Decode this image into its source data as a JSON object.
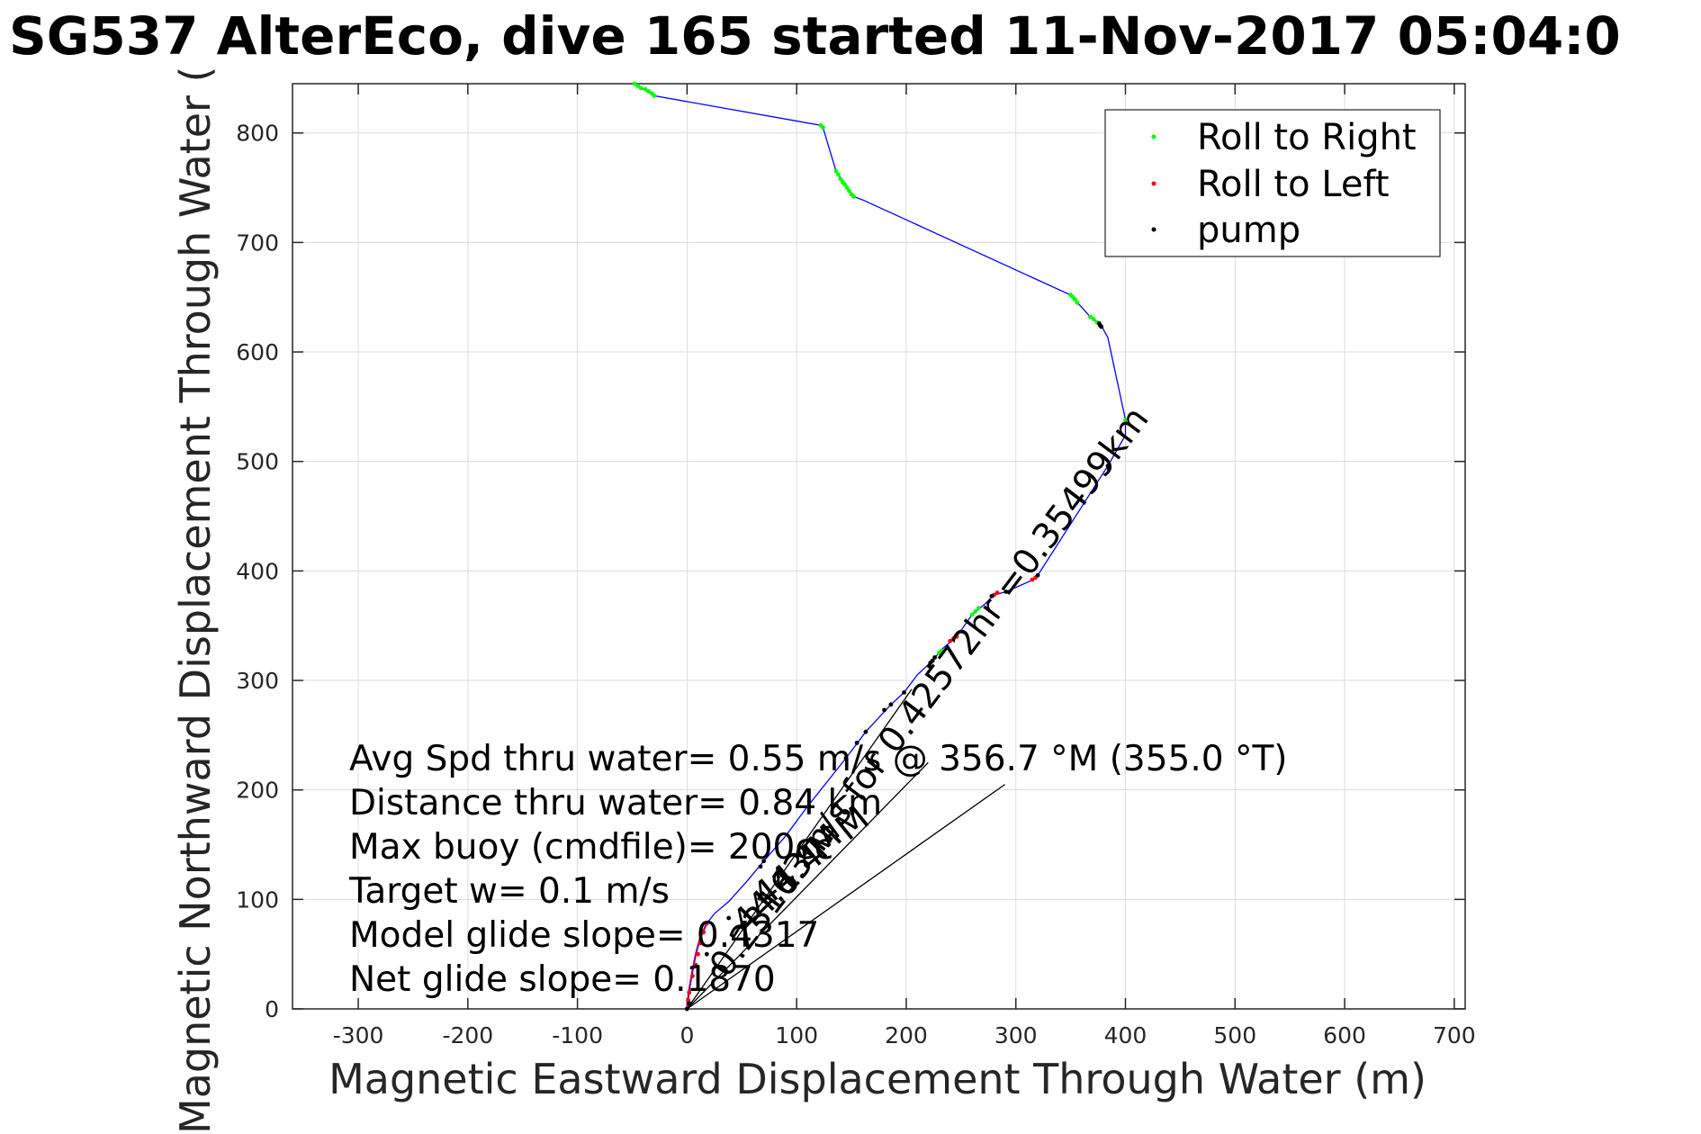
{
  "chart_data": {
    "type": "scatter",
    "title": "SG537 AlterEco, dive 165 started 11-Nov-2017 05:04:0",
    "xlabel": "Magnetic Eastward Displacement Through Water (m)",
    "ylabel": "Magnetic Northward Displacement Through Water (",
    "xlim": [
      -360,
      710
    ],
    "ylim": [
      0,
      845
    ],
    "xticks": [
      -300,
      -200,
      -100,
      0,
      100,
      200,
      300,
      400,
      500,
      600,
      700
    ],
    "yticks": [
      0,
      100,
      200,
      300,
      400,
      500,
      600,
      700,
      800
    ],
    "grid": true,
    "legend_position": "top-right",
    "colors": {
      "track": "#0000ff",
      "roll_right": "#00ff00",
      "roll_left": "#ff0000",
      "pump": "#000000",
      "glide": "#8b008b"
    },
    "series": [
      {
        "name": "Roll to Right",
        "color": "#00ff00",
        "points": [
          [
            -48,
            845
          ],
          [
            -45,
            843
          ],
          [
            -42,
            841
          ],
          [
            -38,
            840
          ],
          [
            -35,
            838
          ],
          [
            -32,
            836
          ],
          [
            -30,
            834
          ],
          [
            122,
            807
          ],
          [
            124,
            805
          ],
          [
            136,
            765
          ],
          [
            138,
            762
          ],
          [
            140,
            758
          ],
          [
            142,
            755
          ],
          [
            144,
            753
          ],
          [
            146,
            750
          ],
          [
            148,
            747
          ],
          [
            150,
            744
          ],
          [
            152,
            742
          ],
          [
            350,
            652
          ],
          [
            352,
            650
          ],
          [
            354,
            648
          ],
          [
            356,
            645
          ],
          [
            368,
            632
          ],
          [
            371,
            630
          ],
          [
            374,
            627
          ],
          [
            400,
            538
          ],
          [
            260,
            360
          ],
          [
            263,
            363
          ],
          [
            266,
            366
          ],
          [
            230,
            325
          ],
          [
            232,
            327
          ]
        ]
      },
      {
        "name": "Roll to Left",
        "color": "#ff0000",
        "points": [
          [
            240,
            336
          ],
          [
            243,
            338
          ],
          [
            246,
            340
          ],
          [
            315,
            392
          ],
          [
            318,
            394
          ],
          [
            280,
            378
          ],
          [
            283,
            380
          ],
          [
            5,
            30
          ],
          [
            8,
            40
          ],
          [
            10,
            50
          ],
          [
            12,
            60
          ],
          [
            15,
            70
          ],
          [
            18,
            78
          ],
          [
            2,
            15
          ],
          [
            1,
            8
          ]
        ]
      },
      {
        "name": "pump",
        "color": "#000000",
        "points": [
          [
            376,
            626
          ],
          [
            377,
            624
          ],
          [
            378,
            623
          ],
          [
            384,
            496
          ],
          [
            385,
            493
          ],
          [
            320,
            396
          ],
          [
            291,
            381
          ],
          [
            278,
            377
          ],
          [
            221,
            313
          ],
          [
            222,
            316
          ],
          [
            224,
            318
          ],
          [
            226,
            321
          ],
          [
            198,
            289
          ],
          [
            186,
            278
          ],
          [
            180,
            273
          ],
          [
            163,
            253
          ],
          [
            155,
            243
          ],
          [
            145,
            229
          ],
          [
            70,
            135
          ],
          [
            67,
            130
          ],
          [
            38,
            83
          ],
          [
            18,
            50
          ],
          [
            2,
            5
          ],
          [
            0,
            0
          ]
        ]
      }
    ],
    "track": [
      [
        -48,
        845
      ],
      [
        -30,
        834
      ],
      [
        122,
        807
      ],
      [
        124,
        805
      ],
      [
        136,
        765
      ],
      [
        152,
        742
      ],
      [
        160,
        739
      ],
      [
        350,
        652
      ],
      [
        368,
        632
      ],
      [
        378,
        624
      ],
      [
        384,
        613
      ],
      [
        400,
        538
      ],
      [
        400,
        524
      ],
      [
        384,
        496
      ],
      [
        320,
        396
      ],
      [
        316,
        392
      ],
      [
        291,
        381
      ],
      [
        280,
        378
      ],
      [
        272,
        370
      ],
      [
        260,
        360
      ],
      [
        246,
        340
      ],
      [
        232,
        328
      ],
      [
        224,
        318
      ],
      [
        210,
        305
      ],
      [
        198,
        289
      ],
      [
        186,
        278
      ],
      [
        163,
        253
      ],
      [
        145,
        229
      ],
      [
        110,
        185
      ],
      [
        90,
        158
      ],
      [
        70,
        135
      ],
      [
        55,
        117
      ],
      [
        38,
        98
      ],
      [
        25,
        87
      ],
      [
        18,
        78
      ],
      [
        12,
        65
      ],
      [
        8,
        50
      ],
      [
        5,
        35
      ],
      [
        2,
        18
      ],
      [
        0,
        0
      ]
    ],
    "glide_track": [
      [
        0,
        0
      ],
      [
        2,
        18
      ],
      [
        5,
        35
      ],
      [
        8,
        50
      ],
      [
        12,
        65
      ],
      [
        18,
        78
      ]
    ],
    "reference_lines": [
      [
        [
          0,
          0
        ],
        [
          205,
          292
        ]
      ],
      [
        [
          0,
          0
        ],
        [
          290,
          205
        ]
      ],
      [
        [
          0,
          0
        ],
        [
          220,
          225
        ]
      ]
    ],
    "annotations": [
      "Avg Spd thru water=  0.55 m/s @ 356.7 °M (355.0 °T)",
      "Distance thru water=  0.84 km",
      "Max buoy (cmdfile)= 200cc",
      "Target w= 0.1 m/s",
      "Model glide slope= 0.4317",
      "Net glide slope= 0.1870"
    ],
    "rotated_annotations": [
      "0.23163m/s for 0.42572hr =0.35499km",
      "44.1 °M",
      "44.4 °M"
    ]
  }
}
